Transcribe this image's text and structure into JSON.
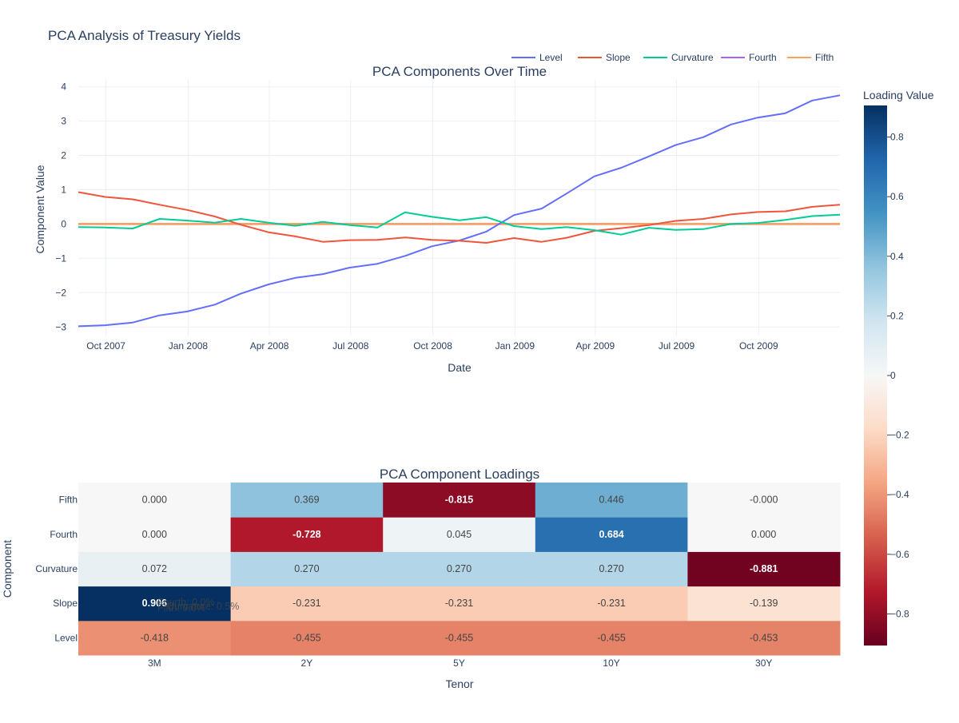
{
  "title": "PCA Analysis of Treasury Yields",
  "colors": {
    "Level": "#636efa",
    "Slope": "#EF553B",
    "Curvature": "#00cc96",
    "Fourth": "#ab63fa",
    "Fifth": "#FFA15A",
    "text": "#2a3f5f",
    "grid": "#ebf0f8"
  },
  "legend": {
    "placement": "top-right",
    "items": [
      "Level",
      "Slope",
      "Curvature",
      "Fourth",
      "Fifth"
    ]
  },
  "chart_data": [
    {
      "type": "line",
      "title": "PCA Components Over Time",
      "xlabel": "Date",
      "ylabel": "Component Value",
      "x_start": "2007-08-31",
      "x_end": "2009-12-31",
      "x_tick_labels": [
        {
          "date": "2007-10-01",
          "label": "Oct 2007"
        },
        {
          "date": "2008-01-01",
          "label": "Jan 2008"
        },
        {
          "date": "2008-04-01",
          "label": "Apr 2008"
        },
        {
          "date": "2008-07-01",
          "label": "Jul 2008"
        },
        {
          "date": "2008-10-01",
          "label": "Oct 2008"
        },
        {
          "date": "2009-01-01",
          "label": "Jan 2009"
        },
        {
          "date": "2009-04-01",
          "label": "Apr 2009"
        },
        {
          "date": "2009-07-01",
          "label": "Jul 2009"
        },
        {
          "date": "2009-10-01",
          "label": "Oct 2009"
        }
      ],
      "ylim": [
        -3.25,
        4.2
      ],
      "y_ticks": [
        -3,
        -2,
        -1,
        0,
        1,
        2,
        3,
        4
      ],
      "y_tick_labels": [
        "−3",
        "−2",
        "−1",
        "0",
        "1",
        "2",
        "3",
        "4"
      ],
      "grid": true,
      "x": [
        "2007-08-31",
        "2007-09-30",
        "2007-10-31",
        "2007-11-30",
        "2007-12-31",
        "2008-01-31",
        "2008-02-29",
        "2008-03-31",
        "2008-04-30",
        "2008-05-31",
        "2008-06-30",
        "2008-07-31",
        "2008-08-31",
        "2008-09-30",
        "2008-10-31",
        "2008-11-30",
        "2008-12-31",
        "2009-01-31",
        "2009-02-28",
        "2009-03-31",
        "2009-04-30",
        "2009-05-31",
        "2009-06-30",
        "2009-07-31",
        "2009-08-31",
        "2009-09-30",
        "2009-10-31",
        "2009-11-30",
        "2009-12-31"
      ],
      "series": [
        {
          "name": "Level",
          "values": [
            -2.98,
            -2.95,
            -2.87,
            -2.66,
            -2.55,
            -2.35,
            -2.03,
            -1.76,
            -1.57,
            -1.46,
            -1.27,
            -1.16,
            -0.93,
            -0.65,
            -0.48,
            -0.22,
            0.26,
            0.45,
            0.89,
            1.39,
            1.64,
            1.97,
            2.3,
            2.53,
            2.9,
            3.1,
            3.23,
            3.6,
            3.75
          ]
        },
        {
          "name": "Slope",
          "values": [
            0.93,
            0.79,
            0.72,
            0.56,
            0.41,
            0.22,
            -0.02,
            -0.24,
            -0.36,
            -0.52,
            -0.47,
            -0.46,
            -0.39,
            -0.46,
            -0.49,
            -0.55,
            -0.41,
            -0.52,
            -0.4,
            -0.2,
            -0.12,
            -0.03,
            0.09,
            0.15,
            0.28,
            0.35,
            0.37,
            0.5,
            0.56
          ]
        },
        {
          "name": "Curvature",
          "values": [
            -0.09,
            -0.1,
            -0.13,
            0.15,
            0.1,
            0.04,
            0.15,
            0.04,
            -0.05,
            0.06,
            -0.03,
            -0.1,
            0.34,
            0.21,
            0.11,
            0.2,
            -0.06,
            -0.15,
            -0.09,
            -0.18,
            -0.31,
            -0.11,
            -0.17,
            -0.15,
            0.0,
            0.03,
            0.12,
            0.23,
            0.27
          ]
        },
        {
          "name": "Fourth",
          "values": [
            0,
            0,
            0,
            0,
            0,
            0,
            0,
            0,
            0,
            0,
            0,
            0,
            0,
            0,
            0,
            0,
            0,
            0,
            0,
            0,
            0,
            0,
            0,
            0,
            0,
            0,
            0,
            0,
            0
          ]
        },
        {
          "name": "Fifth",
          "values": [
            0,
            0,
            0,
            0,
            0,
            0,
            0,
            0,
            0,
            0,
            0,
            0,
            0,
            0,
            0,
            0,
            0,
            0,
            0,
            0,
            0,
            0,
            0,
            0,
            0,
            0,
            0,
            0,
            0
          ]
        }
      ]
    },
    {
      "type": "heatmap",
      "title": "PCA Component Loadings",
      "xlabel": "Tenor",
      "ylabel": "Component",
      "x": [
        "3M",
        "2Y",
        "5Y",
        "10Y",
        "30Y"
      ],
      "y": [
        "Level",
        "Slope",
        "Curvature",
        "Fourth",
        "Fifth"
      ],
      "z": [
        [
          -0.418,
          -0.455,
          -0.455,
          -0.455,
          -0.453
        ],
        [
          0.906,
          -0.231,
          -0.231,
          -0.231,
          -0.139
        ],
        [
          0.072,
          0.27,
          0.27,
          0.27,
          -0.881
        ],
        [
          0.0,
          -0.728,
          0.045,
          0.684,
          0.0
        ],
        [
          0.0,
          0.369,
          -0.815,
          0.446,
          -0.0
        ]
      ],
      "z_labels": [
        [
          "-0.418",
          "-0.455",
          "-0.455",
          "-0.455",
          "-0.453"
        ],
        [
          "0.906",
          "-0.231",
          "-0.231",
          "-0.231",
          "-0.139"
        ],
        [
          "0.072",
          "0.270",
          "0.270",
          "0.270",
          "-0.881"
        ],
        [
          "0.000",
          "-0.728",
          "0.045",
          "0.684",
          "0.000"
        ],
        [
          "0.000",
          "0.369",
          "-0.815",
          "0.446",
          "-0.000"
        ]
      ],
      "zlim": [
        -0.906,
        0.906
      ],
      "colorscale": "RdBu",
      "colorbar_title": "Loading Value",
      "colorbar_ticks": [
        0.8,
        0.6,
        0.4,
        0.2,
        0,
        -0.2,
        -0.4,
        -0.6,
        -0.8
      ],
      "colorbar_tick_labels": [
        "0.8",
        "0.6",
        "0.4",
        "0.2",
        "0",
        "−0.2",
        "−0.4",
        "−0.6",
        "−0.8"
      ],
      "overlapping_annotations": [
        "Fourth: 0.0%",
        "Fifth: 0.0%",
        "Curvature: 0.5%"
      ]
    }
  ]
}
